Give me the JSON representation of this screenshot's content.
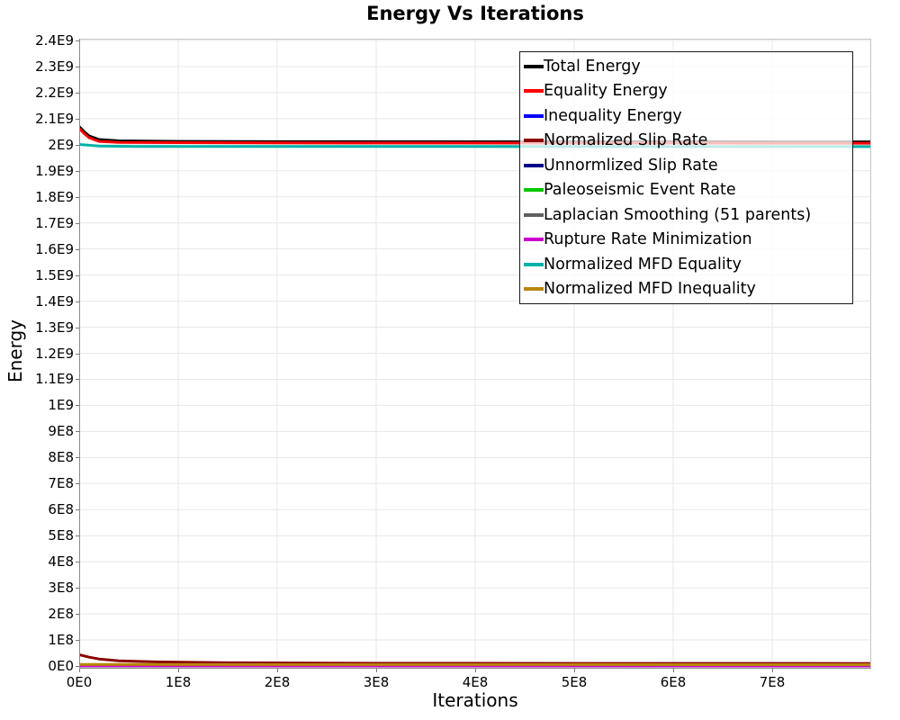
{
  "title": "Energy Vs Iterations",
  "xlabel": "Iterations",
  "ylabel": "Energy",
  "colors": {
    "grid": "#e7e7e7",
    "border_light": "#c6c6c6",
    "axis_dark": "#8a8a8a",
    "legend_border": "#1a1a1a"
  },
  "chart_data": {
    "type": "line",
    "title": "Energy Vs Iterations",
    "xlabel": "Iterations",
    "ylabel": "Energy",
    "xlim": [
      0,
      800000000
    ],
    "ylim": [
      0,
      2400000000
    ],
    "grid": true,
    "legend_position": "upper-right-inside",
    "x_tick_labels": [
      "0E0",
      "1E8",
      "2E8",
      "3E8",
      "4E8",
      "5E8",
      "6E8",
      "7E8"
    ],
    "x_tick_values": [
      0,
      100000000,
      200000000,
      300000000,
      400000000,
      500000000,
      600000000,
      700000000
    ],
    "y_tick_labels": [
      "2.4E9",
      "2.3E9",
      "2.2E9",
      "2.1E9",
      "2E9",
      "1.9E9",
      "1.8E9",
      "1.7E9",
      "1.6E9",
      "1.5E9",
      "1.4E9",
      "1.3E9",
      "1.2E9",
      "1.1E9",
      "1E9",
      "9E8",
      "8E8",
      "7E8",
      "6E8",
      "5E8",
      "4E8",
      "3E8",
      "2E8",
      "1E8",
      "0E0"
    ],
    "y_tick_values": [
      2400000000,
      2300000000,
      2200000000,
      2100000000,
      2000000000,
      1900000000,
      1800000000,
      1700000000,
      1600000000,
      1500000000,
      1400000000,
      1300000000,
      1200000000,
      1100000000,
      1000000000,
      900000000,
      800000000,
      700000000,
      600000000,
      500000000,
      400000000,
      300000000,
      200000000,
      100000000,
      0
    ],
    "series": [
      {
        "name": "Total Energy",
        "color": "#000000",
        "points": [
          [
            0,
            2070000000.0
          ],
          [
            5000000.0,
            2050000000.0
          ],
          [
            10000000.0,
            2034000000.0
          ],
          [
            20000000.0,
            2020000000.0
          ],
          [
            40000000.0,
            2015000000.0
          ],
          [
            100000000.0,
            2013000000.0
          ],
          [
            200000000.0,
            2012000000.0
          ],
          [
            800000000.0,
            2011000000.0
          ]
        ]
      },
      {
        "name": "Equality Energy",
        "color": "#ff0000",
        "points": [
          [
            0,
            2063000000.0
          ],
          [
            5000000.0,
            2043000000.0
          ],
          [
            10000000.0,
            2027000000.0
          ],
          [
            20000000.0,
            2013000000.0
          ],
          [
            40000000.0,
            2009000000.0
          ],
          [
            100000000.0,
            2008000000.0
          ],
          [
            200000000.0,
            2007000000.0
          ],
          [
            800000000.0,
            2006000000.0
          ]
        ]
      },
      {
        "name": "Inequality Energy",
        "color": "#0000ff",
        "points": [
          [
            0,
            1500000.0
          ],
          [
            800000000.0,
            1000000.0
          ]
        ]
      },
      {
        "name": "Normalized Slip Rate",
        "color": "#8b0000",
        "points": [
          [
            0,
            43000000.0
          ],
          [
            10000000.0,
            34000000.0
          ],
          [
            20000000.0,
            27000000.0
          ],
          [
            40000000.0,
            20000000.0
          ],
          [
            80000000.0,
            15500000.0
          ],
          [
            150000000.0,
            12500000.0
          ],
          [
            300000000.0,
            10500000.0
          ],
          [
            800000000.0,
            9500000.0
          ]
        ]
      },
      {
        "name": "Unnormlized Slip Rate",
        "color": "#00008b",
        "points": [
          [
            0,
            1200000.0
          ],
          [
            800000000.0,
            800000.0
          ]
        ]
      },
      {
        "name": "Paleoseismic Event Rate",
        "color": "#00c800",
        "points": [
          [
            0,
            3400000.0
          ],
          [
            800000000.0,
            2800000.0
          ]
        ]
      },
      {
        "name": "Laplacian Smoothing (51 parents)",
        "color": "#606060",
        "points": [
          [
            0,
            1000000.0
          ],
          [
            800000000.0,
            700000.0
          ]
        ]
      },
      {
        "name": "Rupture Rate Minimization",
        "color": "#cc00cc",
        "points": [
          [
            0,
            800000.0
          ],
          [
            800000000.0,
            500000.0
          ]
        ]
      },
      {
        "name": "Normalized MFD Equality",
        "color": "#00b2a9",
        "points": [
          [
            0,
            2001000000.0
          ],
          [
            20000000.0,
            1995000000.0
          ],
          [
            60000000.0,
            1993500000.0
          ],
          [
            800000000.0,
            1993000000.0
          ]
        ]
      },
      {
        "name": "Normalized MFD Inequality",
        "color": "#b8860b",
        "points": [
          [
            0,
            6000000.0
          ],
          [
            800000000.0,
            5200000.0
          ]
        ]
      }
    ]
  }
}
